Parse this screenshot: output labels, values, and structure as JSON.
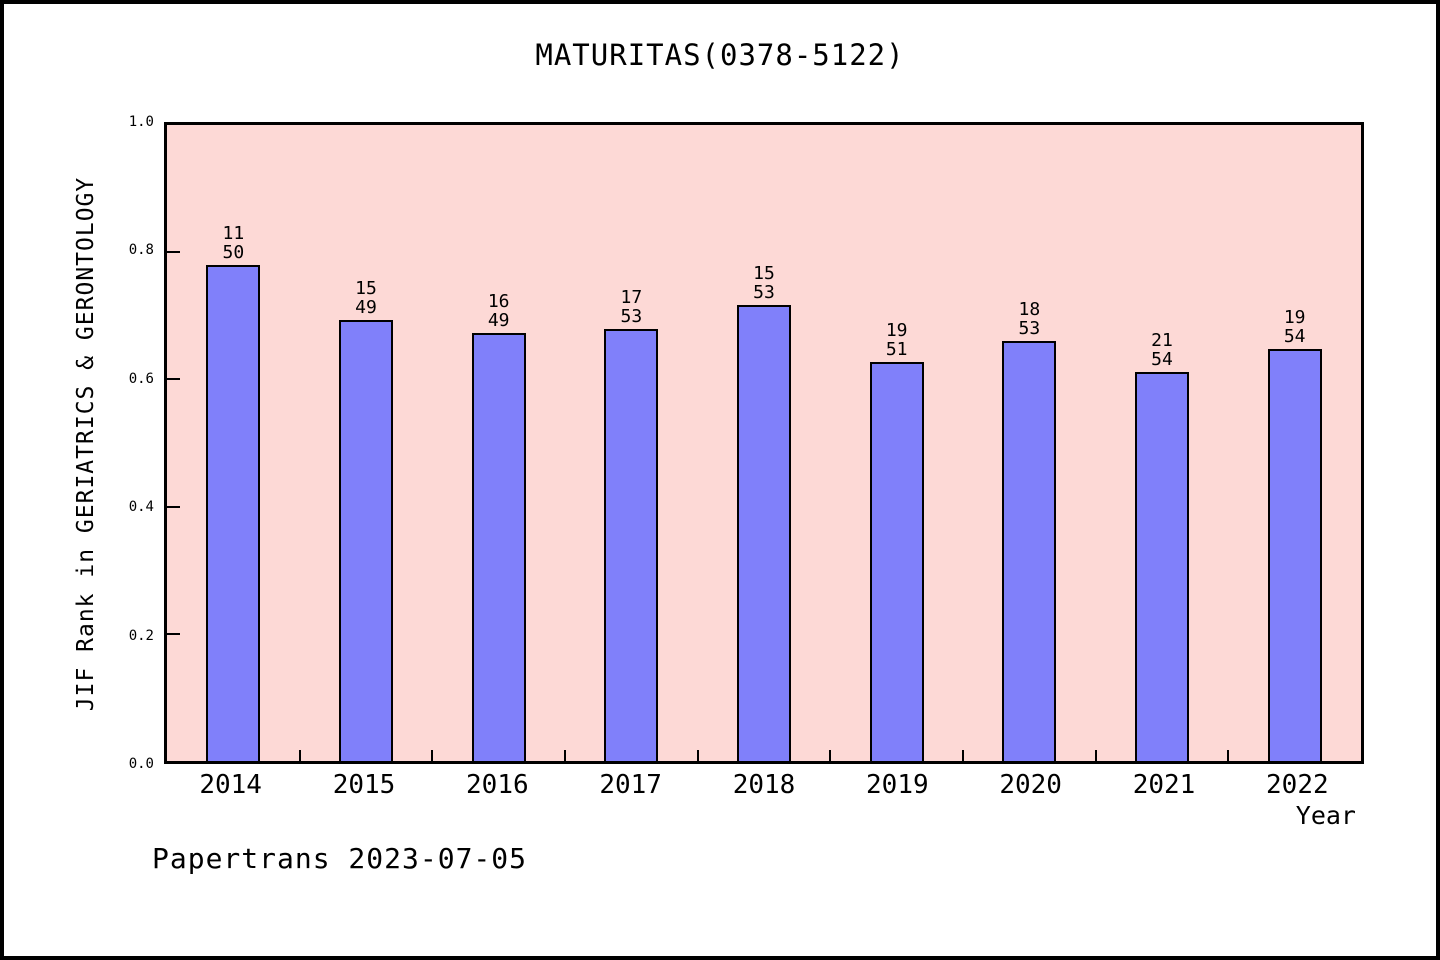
{
  "header": {
    "title": "MATURITAS(0378-5122)"
  },
  "footer": {
    "credit": "Papertrans 2023-07-05"
  },
  "chart_data": {
    "type": "bar",
    "title": "MATURITAS(0378-5122)",
    "xlabel": "Year",
    "ylabel": "JIF Rank in GERIATRICS & GERONTOLOGY",
    "ylim": [
      0.0,
      1.0
    ],
    "ytick_labels": [
      "0.0",
      "0.2",
      "0.4",
      "0.6",
      "0.8",
      "1.0"
    ],
    "ytick_values": [
      0.0,
      0.2,
      0.4,
      0.6,
      0.8,
      1.0
    ],
    "categories": [
      "2014",
      "2015",
      "2016",
      "2017",
      "2018",
      "2019",
      "2020",
      "2021",
      "2022"
    ],
    "values": [
      0.78,
      0.694,
      0.673,
      0.679,
      0.717,
      0.627,
      0.66,
      0.611,
      0.648
    ],
    "bar_labels": [
      {
        "rank": "11",
        "total": "50"
      },
      {
        "rank": "15",
        "total": "49"
      },
      {
        "rank": "16",
        "total": "49"
      },
      {
        "rank": "17",
        "total": "53"
      },
      {
        "rank": "15",
        "total": "53"
      },
      {
        "rank": "19",
        "total": "51"
      },
      {
        "rank": "18",
        "total": "53"
      },
      {
        "rank": "21",
        "total": "54"
      },
      {
        "rank": "19",
        "total": "54"
      }
    ],
    "grid": false,
    "legend": false,
    "colors": {
      "bar_fill": "#8080fa",
      "bar_border": "#000000",
      "plot_background": "#fdd9d6",
      "axis": "#000000"
    }
  }
}
